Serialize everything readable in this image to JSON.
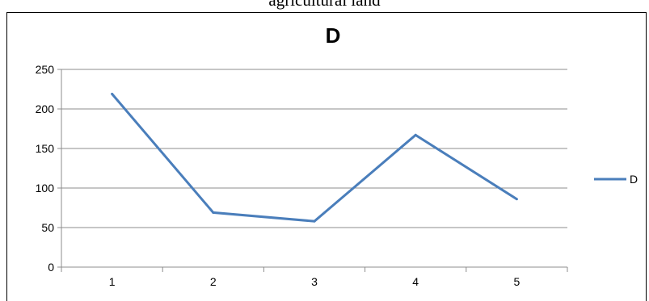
{
  "page": {
    "caption": "agricultural land"
  },
  "chart_data": {
    "type": "line",
    "title": "D",
    "xlabel": "",
    "ylabel": "",
    "categories": [
      "1",
      "2",
      "3",
      "4",
      "5"
    ],
    "series": [
      {
        "name": "D",
        "values": [
          219,
          69,
          58,
          167,
          86
        ],
        "color": "#4a7ebb"
      }
    ],
    "ylim": [
      0,
      250
    ],
    "yticks": [
      0,
      50,
      100,
      150,
      200,
      250
    ],
    "grid": true,
    "legend": "right"
  }
}
